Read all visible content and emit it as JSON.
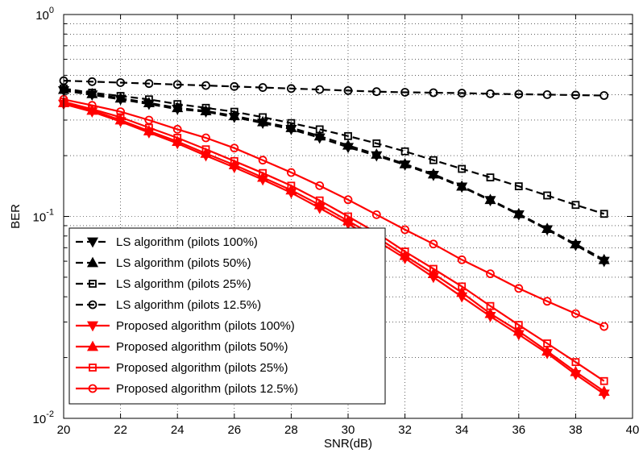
{
  "chart_data": {
    "type": "line",
    "title": "",
    "xlabel": "SNR(dB)",
    "ylabel": "BER",
    "xlim": [
      20,
      40
    ],
    "ylim": [
      0.01,
      1
    ],
    "yscale": "log",
    "grid": true,
    "legend_position": "bottom-left",
    "x_ticks": [
      20,
      22,
      24,
      26,
      28,
      30,
      32,
      34,
      36,
      38,
      40
    ],
    "y_ticks": [
      {
        "value": 0.01,
        "base": "10",
        "exp": "-2"
      },
      {
        "value": 0.1,
        "base": "10",
        "exp": "-1"
      },
      {
        "value": 1,
        "base": "10",
        "exp": "0"
      }
    ],
    "x": [
      20,
      21,
      22,
      23,
      24,
      25,
      26,
      27,
      28,
      29,
      30,
      31,
      32,
      33,
      34,
      35,
      36,
      37,
      38,
      39
    ],
    "series": [
      {
        "name": "LS algorithm (pilots 100%)",
        "color": "#000000",
        "linestyle": "dashed",
        "marker": "triangle-down",
        "values": [
          0.42,
          0.4,
          0.38,
          0.36,
          0.34,
          0.33,
          0.31,
          0.29,
          0.27,
          0.245,
          0.22,
          0.2,
          0.18,
          0.16,
          0.14,
          0.12,
          0.102,
          0.086,
          0.072,
          0.06
        ]
      },
      {
        "name": "LS algorithm (pilots 50%)",
        "color": "#000000",
        "linestyle": "dashed",
        "marker": "triangle-up",
        "values": [
          0.425,
          0.405,
          0.385,
          0.365,
          0.345,
          0.333,
          0.315,
          0.294,
          0.275,
          0.25,
          0.225,
          0.203,
          0.182,
          0.162,
          0.141,
          0.121,
          0.103,
          0.087,
          0.073,
          0.061
        ]
      },
      {
        "name": "LS algorithm (pilots 25%)",
        "color": "#000000",
        "linestyle": "dashed",
        "marker": "square",
        "values": [
          0.43,
          0.41,
          0.395,
          0.38,
          0.36,
          0.345,
          0.33,
          0.31,
          0.29,
          0.27,
          0.25,
          0.23,
          0.21,
          0.19,
          0.172,
          0.156,
          0.141,
          0.127,
          0.114,
          0.103
        ]
      },
      {
        "name": "LS algorithm (pilots 12.5%)",
        "color": "#000000",
        "linestyle": "dashed",
        "marker": "circle",
        "values": [
          0.47,
          0.465,
          0.46,
          0.455,
          0.45,
          0.445,
          0.44,
          0.435,
          0.43,
          0.425,
          0.42,
          0.415,
          0.412,
          0.41,
          0.408,
          0.405,
          0.403,
          0.401,
          0.399,
          0.397
        ]
      },
      {
        "name": "Proposed algorithm (pilots 100%)",
        "color": "#ff0000",
        "linestyle": "solid",
        "marker": "triangle-down",
        "values": [
          0.36,
          0.33,
          0.295,
          0.26,
          0.23,
          0.2,
          0.175,
          0.152,
          0.131,
          0.11,
          0.092,
          0.076,
          0.062,
          0.05,
          0.04,
          0.032,
          0.026,
          0.021,
          0.0165,
          0.0132
        ]
      },
      {
        "name": "Proposed algorithm (pilots 50%)",
        "color": "#ff0000",
        "linestyle": "solid",
        "marker": "triangle-up",
        "values": [
          0.365,
          0.335,
          0.3,
          0.265,
          0.235,
          0.205,
          0.18,
          0.156,
          0.135,
          0.114,
          0.095,
          0.079,
          0.064,
          0.052,
          0.042,
          0.033,
          0.027,
          0.0215,
          0.017,
          0.0136
        ]
      },
      {
        "name": "Proposed algorithm (pilots 25%)",
        "color": "#ff0000",
        "linestyle": "solid",
        "marker": "square",
        "values": [
          0.37,
          0.34,
          0.31,
          0.275,
          0.245,
          0.215,
          0.188,
          0.164,
          0.142,
          0.12,
          0.1,
          0.083,
          0.067,
          0.055,
          0.045,
          0.036,
          0.029,
          0.0235,
          0.019,
          0.0153
        ]
      },
      {
        "name": "Proposed algorithm (pilots 12.5%)",
        "color": "#ff0000",
        "linestyle": "solid",
        "marker": "circle",
        "values": [
          0.38,
          0.355,
          0.33,
          0.3,
          0.27,
          0.245,
          0.218,
          0.19,
          0.165,
          0.142,
          0.121,
          0.102,
          0.086,
          0.073,
          0.061,
          0.052,
          0.044,
          0.038,
          0.033,
          0.0285
        ]
      }
    ]
  }
}
